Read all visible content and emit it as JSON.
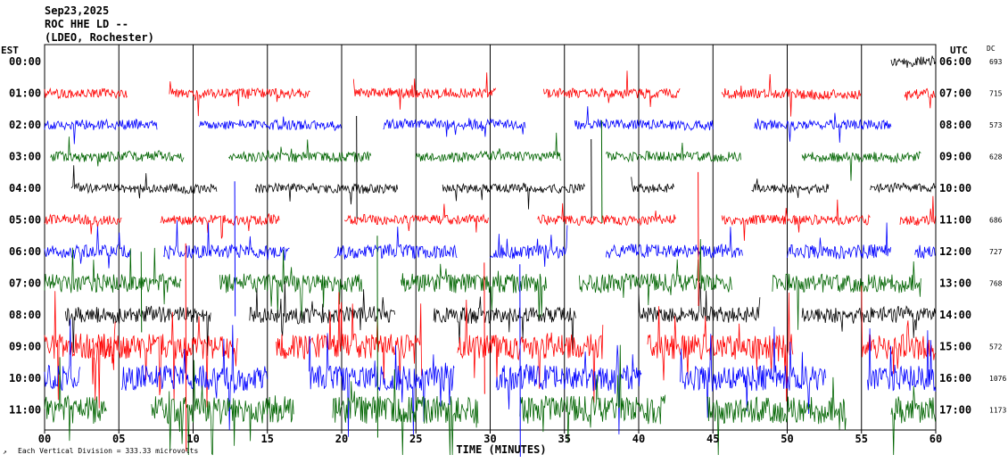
{
  "header": {
    "date": "Sep23,2025",
    "station": "ROC HHE LD --",
    "network": "(LDEO, Rochester)"
  },
  "labels": {
    "left_tz": "EST",
    "right_tz": "UTC",
    "dc_header": "DC",
    "xlabel": "TIME (MINUTES)",
    "footer": "Each Vertical Division =  333.33 microvolts"
  },
  "colors": {
    "black": "#000000",
    "red": "#ff0000",
    "blue": "#0000ff",
    "green": "#006400",
    "background": "#ffffff"
  },
  "chart_data": {
    "type": "line",
    "title": "ROC HHE LD --",
    "xlim": [
      0,
      60
    ],
    "x_ticks": [
      "00",
      "05",
      "10",
      "15",
      "20",
      "25",
      "30",
      "35",
      "40",
      "45",
      "50",
      "55",
      "60"
    ],
    "rows": [
      {
        "est": "00:00",
        "utc": "06:00",
        "dc": "693",
        "color": "black",
        "amp": 1.0,
        "segments": [
          [
            57.0,
            60
          ]
        ]
      },
      {
        "est": "01:00",
        "utc": "07:00",
        "dc": "715",
        "color": "red",
        "amp": 1.0,
        "segments": [
          [
            0,
            5.6
          ],
          [
            8.4,
            17.9
          ],
          [
            20.8,
            30.4
          ],
          [
            33.6,
            42.8
          ],
          [
            45.6,
            55.0
          ],
          [
            57.9,
            60
          ]
        ]
      },
      {
        "est": "02:00",
        "utc": "08:00",
        "dc": "573",
        "color": "blue",
        "amp": 1.0,
        "segments": [
          [
            0,
            7.6
          ],
          [
            10.4,
            20.0
          ],
          [
            22.8,
            32.4
          ],
          [
            35.7,
            45.0
          ],
          [
            47.8,
            57.0
          ]
        ]
      },
      {
        "est": "03:00",
        "utc": "09:00",
        "dc": "628",
        "color": "green",
        "amp": 1.0,
        "segments": [
          [
            0.4,
            9.4
          ],
          [
            12.4,
            22.0
          ],
          [
            25.0,
            34.8
          ],
          [
            37.8,
            46.9
          ],
          [
            51.0,
            59.0
          ]
        ]
      },
      {
        "est": "04:00",
        "utc": "10:00",
        "dc": "",
        "color": "black",
        "amp": 0.9,
        "segments": [
          [
            1.8,
            11.6
          ],
          [
            14.2,
            23.8
          ],
          [
            26.8,
            36.4
          ],
          [
            39.5,
            42.4
          ],
          [
            47.6,
            52.8
          ],
          [
            55.6,
            60
          ]
        ]
      },
      {
        "est": "05:00",
        "utc": "11:00",
        "dc": "686",
        "color": "red",
        "amp": 1.0,
        "segments": [
          [
            0,
            5.2
          ],
          [
            7.8,
            15.8
          ],
          [
            20.2,
            29.9
          ],
          [
            33.2,
            42.5
          ],
          [
            45.6,
            55.6
          ],
          [
            57.6,
            60
          ]
        ]
      },
      {
        "est": "06:00",
        "utc": "12:00",
        "dc": "727",
        "color": "blue",
        "amp": 1.4,
        "segments": [
          [
            0,
            5.8
          ],
          [
            8.0,
            16.5
          ],
          [
            19.5,
            27.8
          ],
          [
            30.0,
            35.2
          ],
          [
            37.8,
            47.0
          ],
          [
            50.0,
            57.0
          ],
          [
            58.6,
            60
          ]
        ]
      },
      {
        "est": "07:00",
        "utc": "13:00",
        "dc": "768",
        "color": "green",
        "amp": 1.9,
        "segments": [
          [
            0,
            9.2
          ],
          [
            11.8,
            21.4
          ],
          [
            24.0,
            33.8
          ],
          [
            36.0,
            46.3
          ],
          [
            49.0,
            59.0
          ]
        ]
      },
      {
        "est": "08:00",
        "utc": "14:00",
        "dc": "",
        "color": "black",
        "amp": 1.6,
        "segments": [
          [
            1.4,
            11.2
          ],
          [
            13.8,
            23.6
          ],
          [
            26.2,
            35.8
          ],
          [
            40.0,
            48.2
          ],
          [
            51.0,
            60
          ]
        ]
      },
      {
        "est": "09:00",
        "utc": "15:00",
        "dc": "572",
        "color": "red",
        "amp": 2.6,
        "segments": [
          [
            0,
            4.8
          ],
          [
            3.2,
            13.0
          ],
          [
            15.6,
            25.4
          ],
          [
            27.8,
            37.6
          ],
          [
            40.6,
            50.4
          ],
          [
            55.0,
            60
          ]
        ]
      },
      {
        "est": "10:00",
        "utc": "16:00",
        "dc": "1076",
        "color": "blue",
        "amp": 2.6,
        "segments": [
          [
            0,
            2.4
          ],
          [
            5.2,
            15.0
          ],
          [
            17.8,
            27.6
          ],
          [
            30.4,
            40.2
          ],
          [
            42.8,
            52.6
          ],
          [
            55.4,
            60
          ]
        ]
      },
      {
        "est": "11:00",
        "utc": "17:00",
        "dc": "1173",
        "color": "green",
        "amp": 2.8,
        "segments": [
          [
            0,
            4.2
          ],
          [
            7.2,
            16.8
          ],
          [
            19.4,
            29.2
          ],
          [
            32.0,
            41.8
          ],
          [
            44.6,
            54.0
          ],
          [
            57.0,
            60
          ]
        ]
      }
    ]
  }
}
